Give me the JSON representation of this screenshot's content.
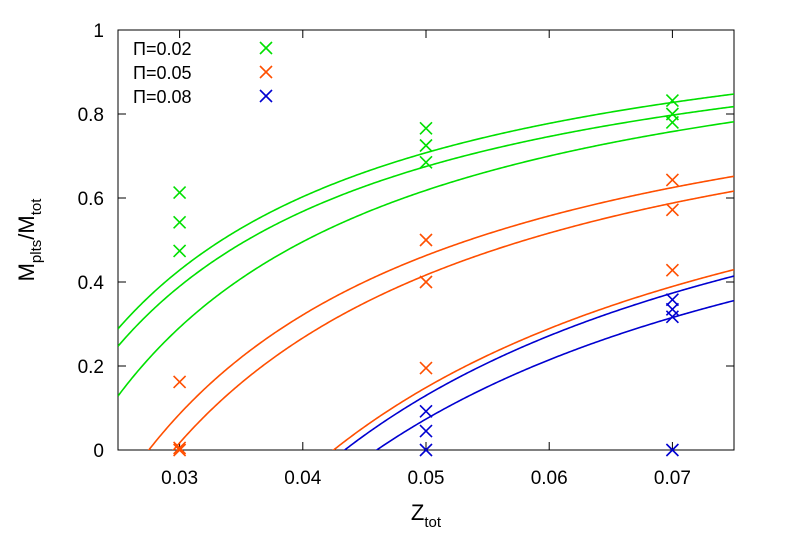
{
  "chart_data": {
    "type": "scatter",
    "xlabel_main": "Z",
    "xlabel_sub": "tot",
    "ylabel_main1": "M",
    "ylabel_sub1": "plts",
    "ylabel_slash": "/M",
    "ylabel_sub2": "tot",
    "xlim": [
      0.025,
      0.075
    ],
    "ylim": [
      0,
      1
    ],
    "xticks": [
      0.03,
      0.04,
      0.05,
      0.06,
      0.07
    ],
    "xtick_labels": [
      "0.03",
      "0.04",
      "0.05",
      "0.06",
      "0.07"
    ],
    "yticks": [
      0,
      0.2,
      0.4,
      0.6,
      0.8,
      1
    ],
    "ytick_labels": [
      "0",
      "0.2",
      "0.4",
      "0.6",
      "0.8",
      "1"
    ],
    "grid": false,
    "legend_position": "top-left",
    "series": [
      {
        "name": "Π=0.02",
        "color": "#00e000",
        "points": [
          {
            "x": 0.03,
            "y": 0.613
          },
          {
            "x": 0.03,
            "y": 0.542
          },
          {
            "x": 0.03,
            "y": 0.474
          },
          {
            "x": 0.05,
            "y": 0.766
          },
          {
            "x": 0.05,
            "y": 0.725
          },
          {
            "x": 0.05,
            "y": 0.685
          },
          {
            "x": 0.07,
            "y": 0.832
          },
          {
            "x": 0.07,
            "y": 0.8
          },
          {
            "x": 0.07,
            "y": 0.78
          }
        ],
        "curves": [
          {
            "a": 1.127,
            "b": 0.0186
          },
          {
            "a": 1.103,
            "b": 0.0194
          },
          {
            "a": 1.108,
            "b": 0.0221
          }
        ]
      },
      {
        "name": "Π=0.05",
        "color": "#ff4f00",
        "points": [
          {
            "x": 0.03,
            "y": 0.162
          },
          {
            "x": 0.03,
            "y": 0.005
          },
          {
            "x": 0.03,
            "y": 0.0
          },
          {
            "x": 0.05,
            "y": 0.5
          },
          {
            "x": 0.05,
            "y": 0.4
          },
          {
            "x": 0.05,
            "y": 0.195
          },
          {
            "x": 0.07,
            "y": 0.643
          },
          {
            "x": 0.07,
            "y": 0.572
          },
          {
            "x": 0.07,
            "y": 0.428
          }
        ],
        "curves": [
          {
            "a": 1.029,
            "b": 0.0275
          },
          {
            "a": 1.016,
            "b": 0.0295
          },
          {
            "a": 0.991,
            "b": 0.0425
          }
        ]
      },
      {
        "name": "Π=0.08",
        "color": "#0000d0",
        "points": [
          {
            "x": 0.05,
            "y": 0.092
          },
          {
            "x": 0.05,
            "y": 0.045
          },
          {
            "x": 0.05,
            "y": 0.0
          },
          {
            "x": 0.07,
            "y": 0.358
          },
          {
            "x": 0.07,
            "y": 0.335
          },
          {
            "x": 0.07,
            "y": 0.317
          },
          {
            "x": 0.07,
            "y": 0.0
          }
        ],
        "curves": [
          {
            "a": 0.983,
            "b": 0.0434
          },
          {
            "a": 0.92,
            "b": 0.046
          }
        ]
      }
    ]
  }
}
